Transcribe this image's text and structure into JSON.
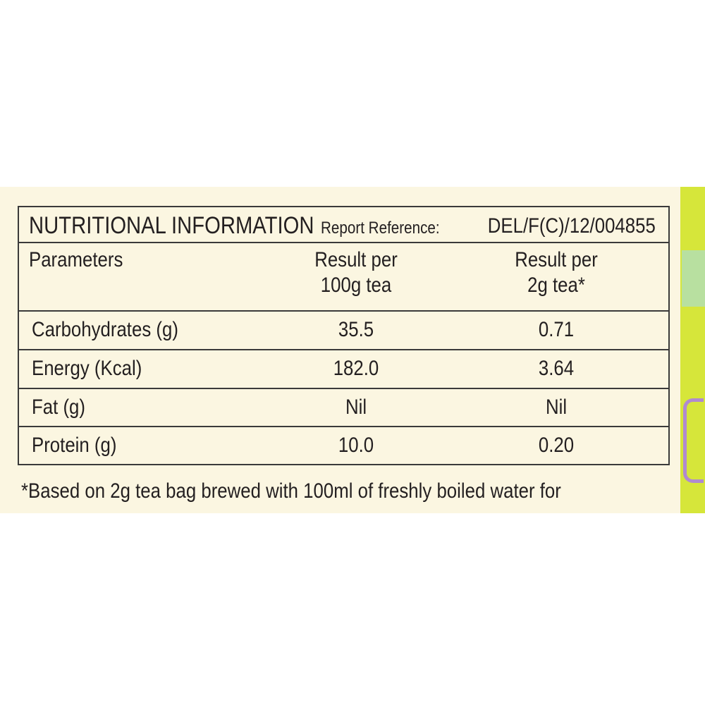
{
  "title": "NUTRITIONAL INFORMATION",
  "report_reference": {
    "label": "Report Reference:",
    "value": "DEL/F(C)/12/004855"
  },
  "table": {
    "headers": [
      [
        "Parameters"
      ],
      [
        "Result per",
        "100g tea"
      ],
      [
        "Result per",
        "2g tea*"
      ]
    ],
    "rows": [
      [
        "Carbohydrates (g)",
        "35.5",
        "0.71"
      ],
      [
        "Energy (Kcal)",
        "182.0",
        "3.64"
      ],
      [
        "Fat (g)",
        "Nil",
        "Nil"
      ],
      [
        "Protein (g)",
        "10.0",
        "0.20"
      ]
    ]
  },
  "footnote": "*Based on 2g tea bag brewed with 100ml of freshly boiled water for"
}
